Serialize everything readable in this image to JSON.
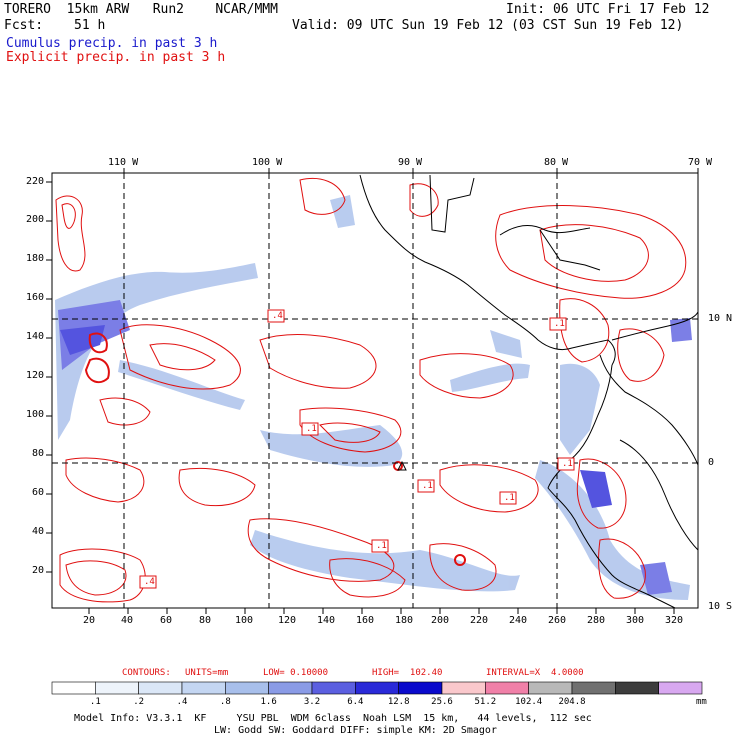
{
  "header": {
    "model": "TORERO  15km ARW   Run2    NCAR/MMM",
    "init": "Init: 06 UTC Fri 17 Feb 12",
    "fcst_label": "Fcst:",
    "fcst_value": "51 h",
    "valid": "Valid: 09 UTC Sun 19 Feb 12 (03 CST Sun 19 Feb 12)",
    "field1": "Cumulus precip. in past 3 h",
    "field2": "Explicit precip. in past 3 h"
  },
  "colors": {
    "field1": "#1a1acc",
    "field2": "#e01010",
    "contour": "#e01010",
    "coast": "#000000"
  },
  "map": {
    "lon_labels": [
      "110 W",
      "100 W",
      "90 W",
      "80 W",
      "70 W"
    ],
    "lat_labels": [
      "10 N",
      "0",
      "10 S"
    ],
    "y_ticks": [
      "220",
      "200",
      "180",
      "160",
      "140",
      "120",
      "100",
      "80",
      "60",
      "40",
      "20"
    ],
    "x_ticks": [
      "20",
      "40",
      "60",
      "80",
      "100",
      "120",
      "140",
      "160",
      "180",
      "200",
      "220",
      "240",
      "260",
      "280",
      "300",
      "320"
    ],
    "box_labels": [
      ".4",
      ".1",
      ".1",
      ".1",
      ".1",
      ".1",
      ".1",
      ".4"
    ]
  },
  "contour_info": {
    "contours": "CONTOURS:",
    "units": "UNITS=mm",
    "low": "LOW= 0.10000",
    "high": "HIGH=  102.40",
    "interval": "INTERVAL=X  4.0000"
  },
  "colorbar": {
    "labels": [
      ".1",
      ".2",
      ".4",
      ".8",
      "1.6",
      "3.2",
      "6.4",
      "12.8",
      "25.6",
      "51.2",
      "102.4",
      "204.8"
    ],
    "unit": "mm",
    "colors": [
      "#ffffff",
      "#eef4fb",
      "#dbe7f7",
      "#c4d6f2",
      "#a8bfeb",
      "#8a9be6",
      "#5b5fe0",
      "#2a2ad8",
      "#0a0acc",
      "#fac8cc",
      "#f080a8",
      "#b8b8b8",
      "#707070",
      "#3c3c3c",
      "#d8a8f0"
    ]
  },
  "model_info": {
    "line1": "Model Info: V3.3.1  KF     YSU PBL  WDM 6class  Noah LSM  15 km,   44 levels,  112 sec",
    "line2": "LW: Godd SW: Goddard DIFF: simple KM: 2D Smagor"
  }
}
